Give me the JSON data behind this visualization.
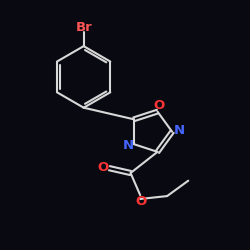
{
  "bg_color": "#090912",
  "bond_color": "#d8d8d8",
  "N_color": "#4466ff",
  "O_color": "#ff3333",
  "Br_color": "#ff5555",
  "bond_lw": 1.5,
  "dbl_off": 0.028,
  "figsize": [
    2.5,
    2.5
  ],
  "dpi": 100,
  "xlim": [
    -1.25,
    1.35
  ],
  "ylim": [
    -1.35,
    1.25
  ],
  "font_size": 9.5
}
